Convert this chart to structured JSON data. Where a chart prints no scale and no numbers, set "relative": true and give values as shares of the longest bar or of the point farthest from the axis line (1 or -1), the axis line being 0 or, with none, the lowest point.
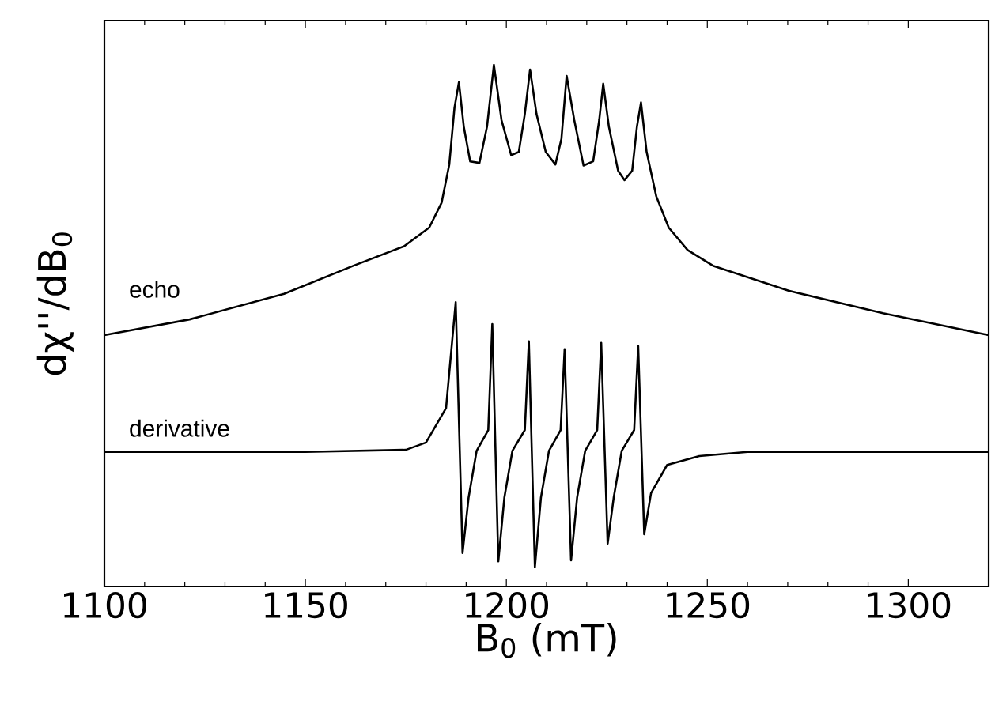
{
  "chart_data": {
    "type": "line",
    "relative": true,
    "xlabel": "B$_{0}$ (mT)",
    "ylabel": "dχ''/dB$_{0}$",
    "xlim": [
      1100,
      1320
    ],
    "xticks": [
      1100,
      1150,
      1200,
      1250,
      1300
    ],
    "line_style": "solid",
    "marker": "none",
    "legend": false,
    "grid": false,
    "series": [
      {
        "name": "echo",
        "color": "#000000",
        "x": [
          1100.0,
          1121.2,
          1144.7,
          1162.0,
          1174.5,
          1180.8,
          1183.9,
          1185.8,
          1187.1,
          1188.2,
          1189.4,
          1191.0,
          1193.3,
          1195.2,
          1196.9,
          1198.8,
          1201.2,
          1203.1,
          1204.6,
          1205.9,
          1207.5,
          1209.8,
          1212.2,
          1213.7,
          1215.0,
          1216.9,
          1219.2,
          1221.6,
          1223.1,
          1224.1,
          1225.5,
          1227.8,
          1229.4,
          1231.3,
          1232.5,
          1233.5,
          1234.9,
          1237.3,
          1240.4,
          1245.1,
          1251.4,
          1270.2,
          1293.7,
          1320.0
        ],
        "values": [
          0.482,
          0.512,
          0.561,
          0.615,
          0.652,
          0.688,
          0.736,
          0.809,
          0.918,
          0.967,
          0.882,
          0.815,
          0.812,
          0.882,
          1.0,
          0.894,
          0.827,
          0.833,
          0.906,
          0.991,
          0.906,
          0.833,
          0.809,
          0.858,
          0.979,
          0.894,
          0.807,
          0.815,
          0.894,
          0.964,
          0.882,
          0.797,
          0.779,
          0.797,
          0.882,
          0.928,
          0.833,
          0.748,
          0.688,
          0.645,
          0.615,
          0.567,
          0.524,
          0.482
        ]
      },
      {
        "name": "derivative",
        "color": "#000000",
        "x": [
          1100,
          1150,
          1175,
          1180,
          1185,
          1187.4,
          1189.1,
          1190.6,
          1192.6,
          1195.5,
          1196.5,
          1198.0,
          1199.5,
          1201.5,
          1204.6,
          1205.6,
          1207.1,
          1208.6,
          1210.6,
          1213.5,
          1214.5,
          1216.1,
          1217.6,
          1219.6,
          1222.6,
          1223.6,
          1225.2,
          1226.7,
          1228.7,
          1231.8,
          1232.8,
          1234.3,
          1236.0,
          1240.0,
          1248.0,
          1260.0,
          1320.0
        ],
        "values": [
          0.258,
          0.258,
          0.262,
          0.276,
          0.342,
          0.545,
          0.064,
          0.17,
          0.26,
          0.3,
          0.503,
          0.048,
          0.17,
          0.26,
          0.3,
          0.47,
          0.037,
          0.17,
          0.26,
          0.3,
          0.455,
          0.05,
          0.17,
          0.26,
          0.3,
          0.467,
          0.082,
          0.17,
          0.26,
          0.3,
          0.461,
          0.1,
          0.179,
          0.233,
          0.25,
          0.258,
          0.258
        ]
      }
    ]
  }
}
